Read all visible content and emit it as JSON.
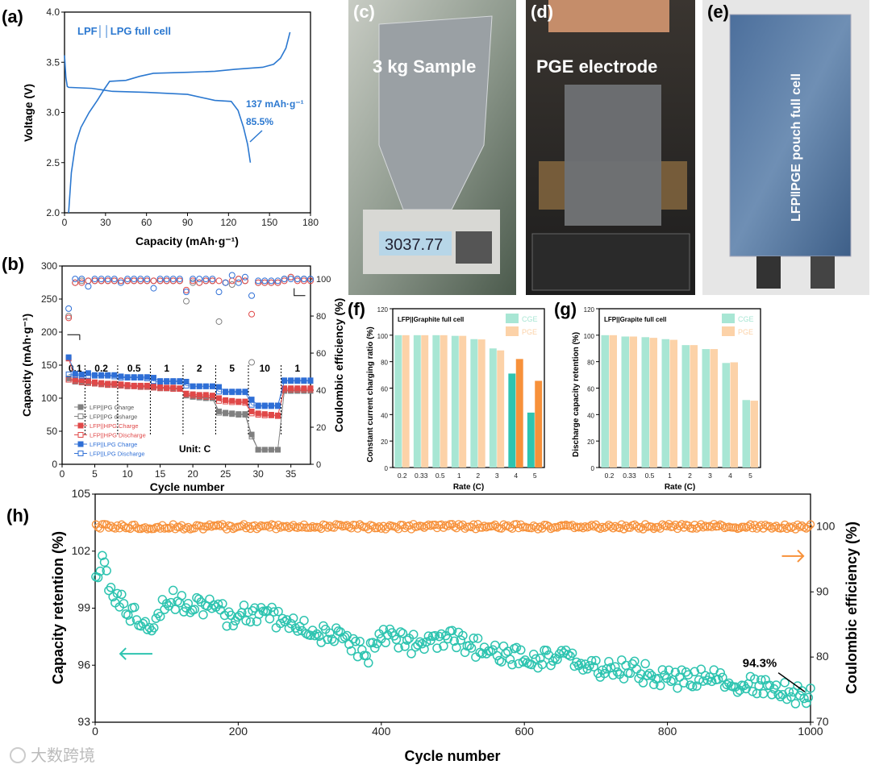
{
  "panels": {
    "a": {
      "label": "(a)",
      "note": "LPF││LPG full cell",
      "ann1": "137 mAh·g⁻¹",
      "ann2": "85.5%"
    },
    "b": {
      "label": "(b)",
      "unit": "Unit: C"
    },
    "c": {
      "label": "(c)",
      "caption": "3 kg Sample",
      "scale_reading": "3037.77"
    },
    "d": {
      "label": "(d)",
      "caption": "PGE electrode"
    },
    "e": {
      "label": "(e)",
      "caption": "LFP‖PGE pouch full cell"
    },
    "f": {
      "label": "(f)",
      "note": "LFP||Graphite full cell"
    },
    "g": {
      "label": "(g)",
      "note": "LFP||Grapite full cell"
    },
    "h": {
      "label": "(h)",
      "ann": "94.3%"
    }
  },
  "watermark": "大数跨境",
  "colors": {
    "blue": "#2f6fd6",
    "red": "#e04848",
    "gray": "#808080",
    "teal": "#2ec4b0",
    "orange": "#f7913a",
    "teal_light": "#a8e6d4",
    "orange_light": "#fcd2a8",
    "line_a": "#2b78d0"
  },
  "chart_data": [
    {
      "id": "a",
      "type": "line",
      "xlabel": "Capacity (mAh·g⁻¹)",
      "ylabel": "Voltage (V)",
      "xlim": [
        0,
        180
      ],
      "ylim": [
        2.0,
        4.0
      ],
      "xticks": [
        0,
        30,
        60,
        90,
        120,
        150,
        180
      ],
      "yticks": [
        2.0,
        2.5,
        3.0,
        3.5,
        4.0
      ],
      "series": [
        {
          "name": "charge",
          "points": [
            [
              3,
              2.0
            ],
            [
              5,
              2.4
            ],
            [
              8,
              2.68
            ],
            [
              12,
              2.85
            ],
            [
              18,
              3.0
            ],
            [
              24,
              3.12
            ],
            [
              29,
              3.23
            ],
            [
              33,
              3.31
            ],
            [
              45,
              3.32
            ],
            [
              55,
              3.36
            ],
            [
              65,
              3.39
            ],
            [
              90,
              3.4
            ],
            [
              110,
              3.41
            ],
            [
              125,
              3.43
            ],
            [
              145,
              3.45
            ],
            [
              153,
              3.48
            ],
            [
              158,
              3.54
            ],
            [
              162,
              3.64
            ],
            [
              165,
              3.8
            ]
          ]
        },
        {
          "name": "discharge",
          "points": [
            [
              0,
              3.57
            ],
            [
              1,
              3.35
            ],
            [
              2,
              3.26
            ],
            [
              3,
              3.25
            ],
            [
              20,
              3.24
            ],
            [
              35,
              3.21
            ],
            [
              60,
              3.2
            ],
            [
              90,
              3.18
            ],
            [
              110,
              3.12
            ],
            [
              122,
              3.11
            ],
            [
              127,
              3.02
            ],
            [
              131,
              2.85
            ],
            [
              134,
              2.68
            ],
            [
              136,
              2.5
            ]
          ]
        }
      ]
    },
    {
      "id": "b",
      "type": "scatter",
      "xlabel": "Cycle number",
      "ylabel": "Capacity (mAh·g⁻¹)",
      "ylabel_right": "Coulombic efficiency (%)",
      "xlim": [
        0,
        38
      ],
      "ylim": [
        0,
        300
      ],
      "ylim_right": [
        0,
        107
      ],
      "xticks": [
        0,
        5,
        10,
        15,
        20,
        25,
        30,
        35
      ],
      "yticks": [
        0,
        50,
        100,
        150,
        200,
        250,
        300
      ],
      "yticks_right": [
        0,
        20,
        40,
        60,
        80,
        100
      ],
      "rate_labels": [
        {
          "cycle": 2,
          "text": "0.1"
        },
        {
          "cycle": 6,
          "text": "0.2"
        },
        {
          "cycle": 11,
          "text": "0.5"
        },
        {
          "cycle": 16,
          "text": "1"
        },
        {
          "cycle": 21,
          "text": "2"
        },
        {
          "cycle": 26,
          "text": "5"
        },
        {
          "cycle": 31,
          "text": "10"
        },
        {
          "cycle": 36,
          "text": "1"
        }
      ],
      "rate_boundaries": [
        3.5,
        8.5,
        13.5,
        18.5,
        23.5,
        28.5,
        33.5
      ],
      "series": [
        {
          "name": "LFP||PG Charge",
          "color": "gray",
          "filled": true,
          "values": [
            130,
            127,
            125,
            124,
            123,
            122,
            121,
            121,
            120,
            119,
            119,
            118,
            118,
            117,
            116,
            115,
            115,
            114,
            105,
            103,
            102,
            101,
            101,
            80,
            78,
            77,
            76,
            76,
            45,
            22,
            22,
            22,
            22,
            112,
            112,
            112,
            112,
            112
          ]
        },
        {
          "name": "LFP||PG disharge",
          "color": "gray",
          "filled": false,
          "values": [
            128,
            125,
            124,
            123,
            122,
            121,
            120,
            120,
            119,
            118,
            118,
            117,
            117,
            116,
            115,
            115,
            114,
            114,
            104,
            102,
            101,
            100,
            100,
            78,
            77,
            76,
            75,
            75,
            42,
            22,
            22,
            22,
            22,
            111,
            111,
            111,
            111,
            111
          ]
        },
        {
          "name": "LFP||HPG Charge",
          "color": "red",
          "filled": true,
          "values": [
            160,
            128,
            127,
            126,
            124,
            123,
            122,
            122,
            121,
            120,
            119,
            119,
            119,
            118,
            117,
            116,
            116,
            115,
            107,
            106,
            105,
            105,
            104,
            100,
            97,
            96,
            95,
            95,
            80,
            77,
            76,
            75,
            74,
            115,
            115,
            115,
            115,
            115
          ]
        },
        {
          "name": "LFP||HPG Discharge",
          "color": "red",
          "filled": false,
          "values": [
            128,
            126,
            124,
            123,
            122,
            121,
            120,
            120,
            119,
            118,
            118,
            117,
            117,
            116,
            115,
            115,
            114,
            114,
            106,
            104,
            103,
            102,
            102,
            96,
            95,
            94,
            94,
            93,
            77,
            75,
            74,
            74,
            73,
            113,
            113,
            113,
            113,
            113
          ]
        },
        {
          "name": "LFP||LPG Charge",
          "color": "blue",
          "filled": true,
          "values": [
            162,
            137,
            136,
            138,
            135,
            135,
            135,
            135,
            133,
            132,
            132,
            132,
            132,
            131,
            126,
            126,
            126,
            126,
            125,
            118,
            118,
            118,
            118,
            117,
            110,
            110,
            110,
            110,
            98,
            89,
            89,
            89,
            89,
            127,
            127,
            127,
            127,
            127
          ]
        },
        {
          "name": "LFP||LPG Discharge",
          "color": "blue",
          "filled": false,
          "values": [
            136,
            135,
            134,
            134,
            134,
            134,
            134,
            133,
            131,
            131,
            131,
            131,
            130,
            126,
            125,
            125,
            125,
            125,
            119,
            118,
            118,
            118,
            118,
            110,
            109,
            109,
            109,
            109,
            90,
            88,
            88,
            88,
            88,
            126,
            126,
            126,
            126,
            126
          ]
        }
      ],
      "ce_series": [
        {
          "name": "LFP||PG CE",
          "color": "gray",
          "values": [
            80,
            98,
            99,
            99,
            99,
            99,
            99,
            99,
            99,
            99,
            99,
            99,
            99,
            99,
            99,
            99,
            99,
            99,
            88,
            98,
            98,
            99,
            99,
            77,
            98,
            97,
            100,
            99,
            55,
            98,
            98,
            98,
            98,
            100,
            101,
            100,
            100,
            100
          ]
        },
        {
          "name": "LFP||HPG CE",
          "color": "red",
          "values": [
            79,
            98,
            98,
            99,
            99,
            99,
            99,
            99,
            99,
            99,
            99,
            99,
            99,
            99,
            99,
            99,
            99,
            99,
            94,
            99,
            98,
            99,
            99,
            99,
            98,
            99,
            100,
            99,
            81,
            98,
            98,
            98,
            98,
            99,
            101,
            99,
            99,
            99
          ]
        },
        {
          "name": "LFP||LPG CE",
          "color": "blue",
          "values": [
            84,
            100,
            100,
            96,
            100,
            100,
            100,
            100,
            98,
            100,
            100,
            100,
            100,
            95,
            100,
            100,
            100,
            100,
            93,
            100,
            100,
            100,
            100,
            93,
            98,
            102,
            98,
            101,
            91,
            99,
            99,
            99,
            99,
            100,
            100,
            100,
            100,
            100
          ]
        }
      ]
    },
    {
      "id": "f",
      "type": "bar",
      "xlabel": "Rate (C)",
      "ylabel": "Constant current charging ratio (%)",
      "ylim": [
        0,
        120
      ],
      "yticks": [
        0,
        20,
        40,
        60,
        80,
        100,
        120
      ],
      "categories": [
        "0.2",
        "0.33",
        "0.5",
        "1",
        "2",
        "3",
        "4",
        "5"
      ],
      "series": [
        {
          "name": "CGE",
          "values": [
            100,
            100,
            100,
            99.5,
            97,
            90,
            71,
            41.5
          ]
        },
        {
          "name": "PGE",
          "values": [
            100,
            100,
            100,
            99.5,
            96.8,
            88.5,
            82,
            65.5
          ]
        }
      ],
      "highlight_categories": [
        "4",
        "5"
      ],
      "legend": "top-right"
    },
    {
      "id": "g",
      "type": "bar",
      "xlabel": "Rate (C)",
      "ylabel": "Discharge capacity retention (%)",
      "ylim": [
        0,
        120
      ],
      "yticks": [
        0,
        20,
        40,
        60,
        80,
        100,
        120
      ],
      "categories": [
        "0.2",
        "0.33",
        "0.5",
        "1",
        "2",
        "3",
        "4",
        "5"
      ],
      "series": [
        {
          "name": "CGE",
          "values": [
            100,
            99,
            98.5,
            97,
            92.5,
            89.5,
            79,
            51
          ]
        },
        {
          "name": "PGE",
          "values": [
            100,
            99,
            98,
            96.5,
            92.5,
            89.5,
            79.5,
            50.5
          ]
        }
      ],
      "legend": "top-right"
    },
    {
      "id": "h",
      "type": "scatter",
      "xlabel": "Cycle number",
      "ylabel": "Capacity retention (%)",
      "ylabel_right": "Coulombic efficiency (%)",
      "xlim": [
        0,
        1000
      ],
      "ylim": [
        93,
        105
      ],
      "ylim_right": [
        70,
        105
      ],
      "xticks": [
        0,
        200,
        400,
        600,
        800,
        1000
      ],
      "yticks": [
        93,
        96,
        99,
        102,
        105
      ],
      "yticks_right": [
        70,
        80,
        90,
        100
      ],
      "capacity_trend": [
        [
          0,
          100
        ],
        [
          8,
          101.5
        ],
        [
          20,
          100
        ],
        [
          50,
          98.7
        ],
        [
          80,
          98.3
        ],
        [
          100,
          99.5
        ],
        [
          150,
          99.2
        ],
        [
          190,
          98.5
        ],
        [
          230,
          98.8
        ],
        [
          300,
          97.8
        ],
        [
          350,
          97.3
        ],
        [
          380,
          96.5
        ],
        [
          400,
          97.8
        ],
        [
          450,
          97
        ],
        [
          500,
          97.3
        ],
        [
          550,
          96.7
        ],
        [
          600,
          96.3
        ],
        [
          650,
          96.5
        ],
        [
          700,
          95.8
        ],
        [
          750,
          95.8
        ],
        [
          800,
          95.2
        ],
        [
          850,
          95.3
        ],
        [
          900,
          95
        ],
        [
          950,
          94.8
        ],
        [
          1000,
          94.3
        ]
      ],
      "ce_trend": [
        [
          0,
          100
        ],
        [
          1000,
          100
        ]
      ]
    }
  ]
}
